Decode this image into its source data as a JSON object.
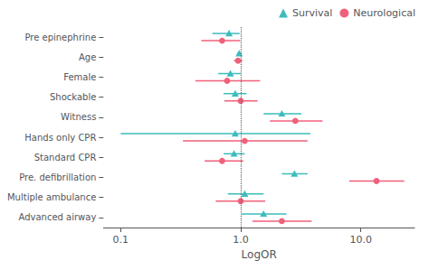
{
  "chart_data": {
    "type": "forest",
    "xlabel": "LogOR",
    "categories": [
      "Pre epinephrine",
      "Age",
      "Female",
      "Shockable",
      "Witness",
      "Hands only CPR",
      "Standard CPR",
      "Pre. defibrillation",
      "Multiple ambulance",
      "Advanced airway"
    ],
    "series": [
      {
        "name": "Survival",
        "color": "#3dbcbc",
        "marker": "triangle",
        "values": [
          0.8,
          0.97,
          0.82,
          0.9,
          2.2,
          0.9,
          0.88,
          2.8,
          1.08,
          1.55
        ],
        "lo": [
          0.58,
          0.93,
          0.65,
          0.72,
          1.55,
          0.1,
          0.72,
          2.2,
          0.78,
          1.02
        ],
        "hi": [
          0.98,
          1.01,
          1.0,
          1.12,
          3.2,
          3.8,
          1.08,
          3.6,
          1.55,
          2.4
        ]
      },
      {
        "name": "Neurological",
        "color": "#f0607a",
        "marker": "circle",
        "values": [
          0.7,
          0.95,
          0.77,
          1.0,
          2.85,
          1.08,
          0.7,
          13.5,
          1.0,
          2.2
        ],
        "lo": [
          0.47,
          0.88,
          0.42,
          0.73,
          1.75,
          0.33,
          0.5,
          8.0,
          0.62,
          1.25
        ],
        "hi": [
          0.99,
          1.03,
          1.45,
          1.38,
          4.8,
          3.6,
          1.05,
          23.0,
          1.6,
          3.9
        ]
      }
    ],
    "ref_line": 1.0,
    "log": "x",
    "xlim": [
      0.072,
      28.0
    ],
    "xticks": [
      0.1,
      {
        "value": 1.0,
        "label": "1.0"
      },
      {
        "value": 10.0,
        "label": "10.0"
      }
    ],
    "grid": false,
    "legend": "upper right"
  }
}
